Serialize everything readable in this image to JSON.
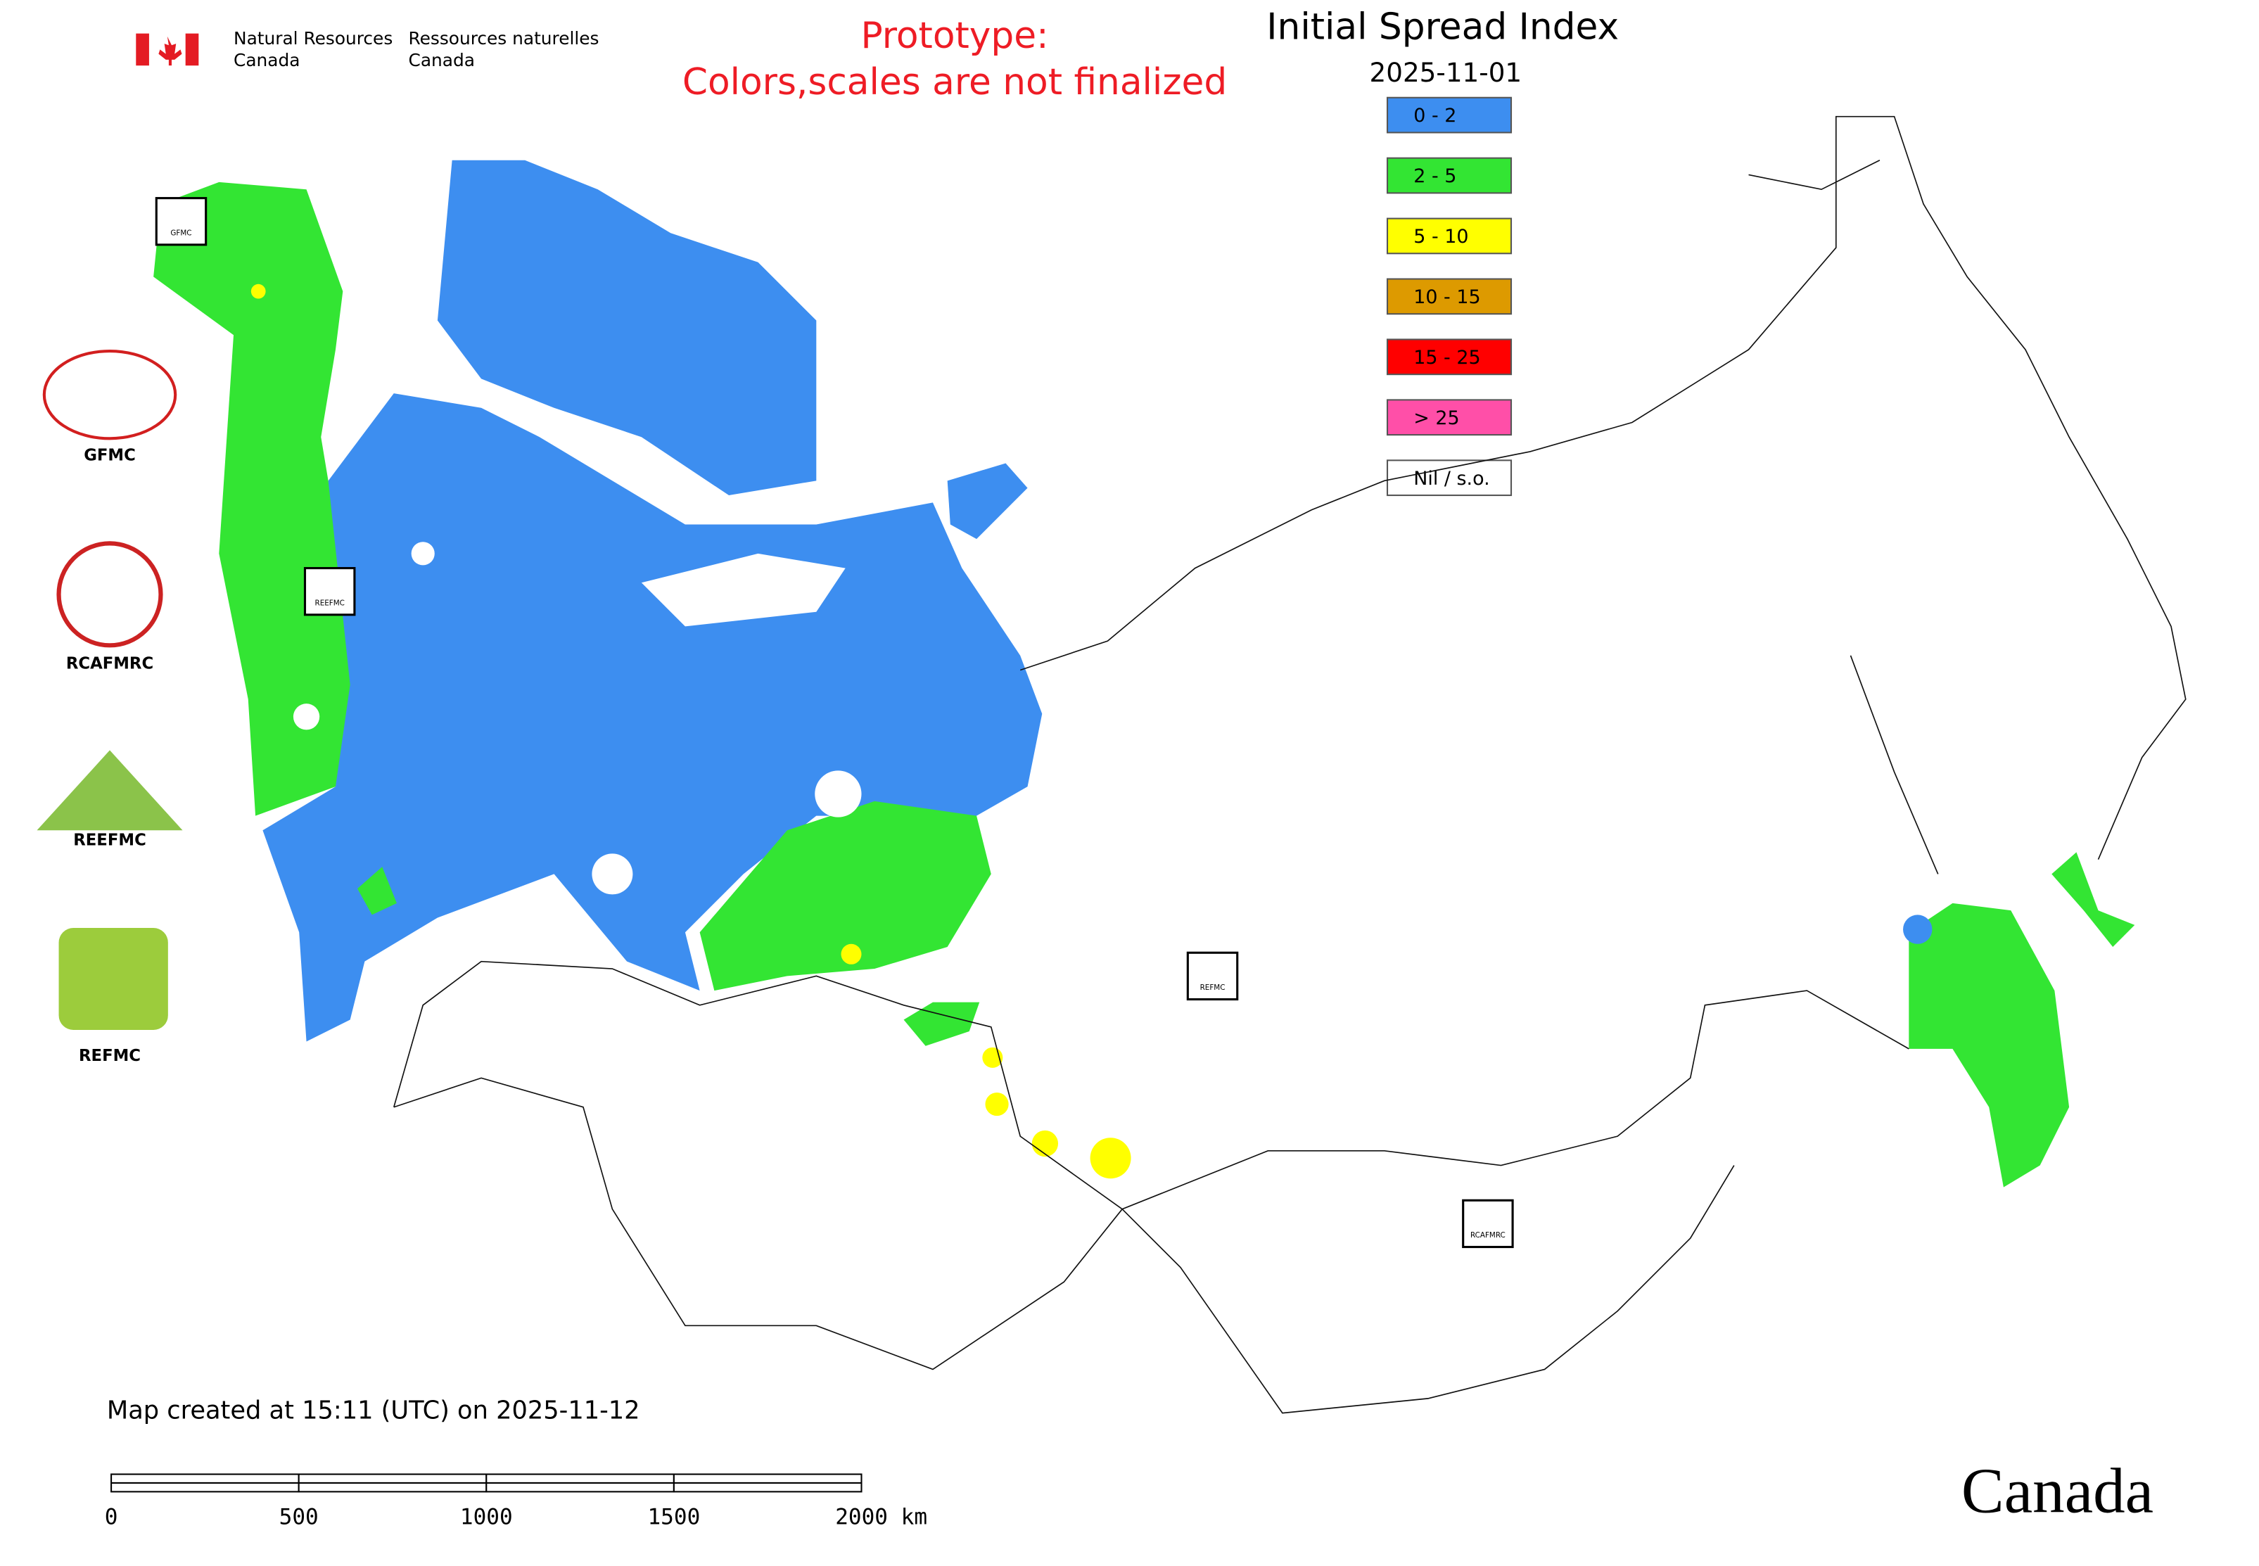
{
  "header": {
    "agency_en": [
      "Natural Resources",
      "Canada"
    ],
    "agency_fr": [
      "Ressources naturelles",
      "Canada"
    ],
    "notice": [
      "Prototype:",
      "Colors,scales are not finalized"
    ]
  },
  "title": "Initial Spread Index",
  "date": "2025-11-01",
  "legend": [
    {
      "label": "0 - 2",
      "color": "#3d8ef0"
    },
    {
      "label": "2 - 5",
      "color": "#33e533"
    },
    {
      "label": "5 - 10",
      "color": "#ffff00"
    },
    {
      "label": "10 - 15",
      "color": "#dd9a00"
    },
    {
      "label": "15 - 25",
      "color": "#ff0000"
    },
    {
      "label": "> 25",
      "color": "#ff4fa8"
    },
    {
      "label": "Nil / s.o.",
      "color": "#ffffff"
    }
  ],
  "logos": [
    "GFMC",
    "RCAFMRC",
    "REEFMC",
    "REFMC"
  ],
  "map_badges": [
    "GFMC",
    "REEFMC",
    "REFMC",
    "RCAFMRC"
  ],
  "footer": {
    "created": "Map created at 15:11 (UTC) on 2025-11-12",
    "scale_ticks": [
      "0",
      "500",
      "1000",
      "1500",
      "2000 km"
    ],
    "wordmark": "Canada"
  }
}
